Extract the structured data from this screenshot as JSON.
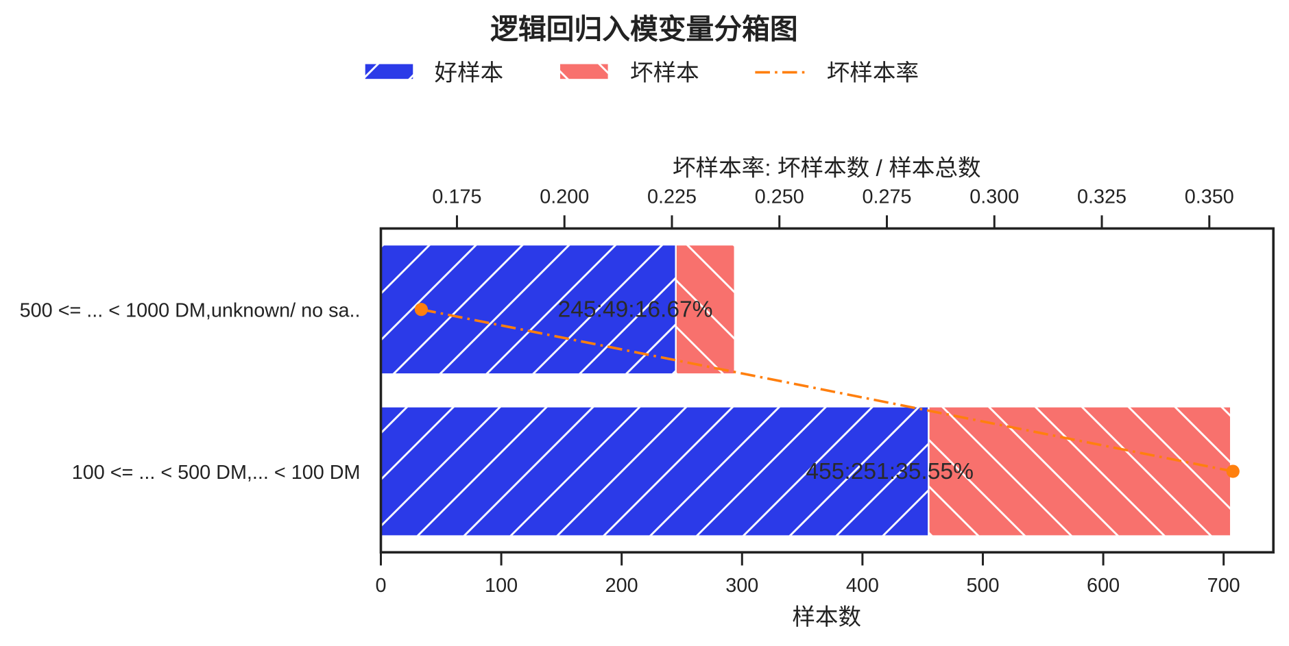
{
  "colors": {
    "good": "#2b3ae8",
    "bad": "#f8716d",
    "rate": "#ff7f0e",
    "axis": "#222222",
    "hatch": "#ffffff"
  },
  "chart_data": {
    "type": "bar",
    "orientation": "horizontal",
    "stacked": true,
    "title": "逻辑回归入模变量分箱图",
    "categories": [
      "500 <= ... < 1000 DM,unknown/ no sa..",
      "100 <= ... < 500 DM,... < 100 DM"
    ],
    "series": [
      {
        "name": "好样本",
        "values": [
          245,
          455
        ]
      },
      {
        "name": "坏样本",
        "values": [
          49,
          251
        ]
      }
    ],
    "line_series": {
      "name": "坏样本率",
      "values": [
        0.1667,
        0.3555
      ],
      "axis": "top"
    },
    "annotations": [
      "245:49:16.67%",
      "455:251:35.55%"
    ],
    "xlabel": "样本数",
    "x2label": "坏样本率: 坏样本数 / 样本总数",
    "xlim": [
      0,
      741.3
    ],
    "x2lim": [
      0.1573,
      0.3649
    ],
    "xticks": [
      "0",
      "100",
      "200",
      "300",
      "400",
      "500",
      "600",
      "700"
    ],
    "x2ticks": [
      "0.175",
      "0.200",
      "0.225",
      "0.250",
      "0.275",
      "0.300",
      "0.325",
      "0.350"
    ],
    "grid": false,
    "legend_placement": "top-center"
  }
}
